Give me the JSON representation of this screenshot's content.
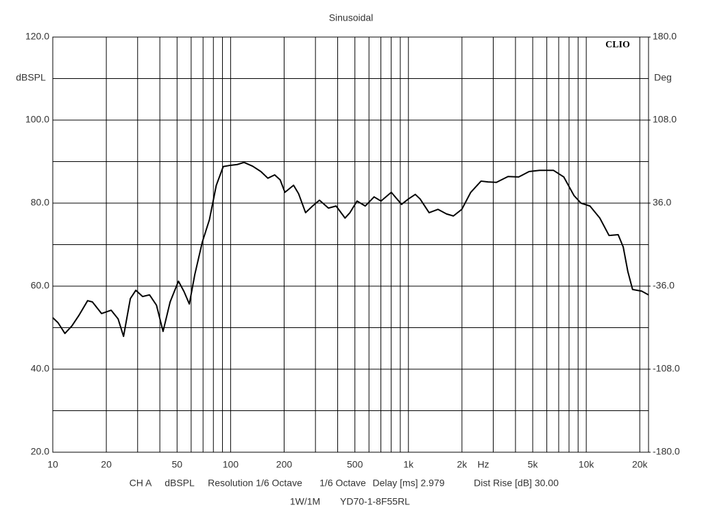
{
  "chart_data": {
    "type": "line",
    "title": "Sinusoidal",
    "logo": "CLIO",
    "y_label": "dBSPL",
    "y2_label": "Deg",
    "x_unit": "Hz",
    "info": [
      "CH A",
      "dBSPL",
      "Resolution 1/6 Octave",
      "1/6 Octave",
      "Delay [ms] 2.979",
      "Dist Rise [dB] 30.00"
    ],
    "info2": [
      "1W/1M",
      "YD70-1-8F55RL"
    ],
    "x_log": true,
    "xlim": [
      10,
      22400
    ],
    "xticks": [
      10,
      20,
      50,
      100,
      200,
      500,
      {
        "value": 1000,
        "label": "1k"
      },
      {
        "value": 2000,
        "label": "2k"
      },
      {
        "value": 5000,
        "label": "5k"
      },
      {
        "value": 10000,
        "label": "10k"
      },
      {
        "value": 20000,
        "label": "20k"
      }
    ],
    "xminor": [
      30,
      40,
      60,
      70,
      80,
      90,
      300,
      400,
      600,
      700,
      800,
      900,
      3000,
      4000,
      6000,
      7000,
      8000,
      9000
    ],
    "ylim": [
      20,
      120
    ],
    "yticks": [
      {
        "value": 120,
        "label": "120.0"
      },
      {
        "value": 100,
        "label": "100.0"
      },
      {
        "value": 80,
        "label": "80.0"
      },
      {
        "value": 60,
        "label": "60.0"
      },
      {
        "value": 40,
        "label": "40.0"
      },
      {
        "value": 20,
        "label": "20.0"
      }
    ],
    "yminor": [
      110,
      90,
      70,
      50,
      30
    ],
    "y2lim": [
      -180,
      180
    ],
    "y2ticks": [
      {
        "value": 180,
        "label": "180.0"
      },
      {
        "value": 108,
        "label": "108.0"
      },
      {
        "value": 36,
        "label": "36.0"
      },
      {
        "value": -36,
        "label": "-36.0"
      },
      {
        "value": -108,
        "label": "-108.0"
      },
      {
        "value": -180,
        "label": "-180.0"
      }
    ],
    "grid": true,
    "series": [
      {
        "name": "SPL",
        "color": "#000000",
        "x": [
          10,
          10.7,
          11.7,
          12.8,
          14,
          15.7,
          16.7,
          18.8,
          21.3,
          23.3,
          25,
          27.3,
          29.3,
          32,
          35,
          38.3,
          41.7,
          45.7,
          50.9,
          54.7,
          58.6,
          62.9,
          69.3,
          76,
          83.1,
          90.9,
          99.5,
          109,
          119,
          133,
          148,
          162,
          177,
          190,
          202,
          226,
          241,
          264,
          289,
          316,
          355,
          392,
          440,
          469,
          514,
          572,
          641,
          701,
          801,
          915,
          1000,
          1093,
          1163,
          1307,
          1467,
          1637,
          1790,
          1996,
          2241,
          2561,
          2800,
          3125,
          3632,
          4169,
          4770,
          5462,
          6536,
          7476,
          8538,
          9338,
          10494,
          11920,
          13435,
          15120,
          16150,
          17120,
          18220,
          20500,
          22400
        ],
        "values": [
          52.4,
          51.2,
          48.6,
          50.4,
          52.9,
          56.5,
          56.2,
          53.4,
          54.2,
          52.1,
          47.9,
          57,
          59,
          57.5,
          57.9,
          55.4,
          49.1,
          56.2,
          61.2,
          58.7,
          55.7,
          62.8,
          70.6,
          76,
          84.3,
          88.8,
          89.1,
          89.3,
          89.8,
          88.9,
          87.6,
          86,
          86.8,
          85.6,
          82.6,
          84.3,
          82.3,
          77.7,
          79.3,
          80.7,
          78.8,
          79.3,
          76.4,
          77.7,
          80.5,
          79.3,
          81.5,
          80.5,
          82.6,
          79.7,
          81,
          82.1,
          81,
          77.7,
          78.5,
          77.4,
          76.9,
          78.5,
          82.6,
          85.3,
          85.1,
          85,
          86.4,
          86.3,
          87.6,
          87.9,
          87.9,
          86.3,
          81.8,
          80,
          79.3,
          76.4,
          72.2,
          72.4,
          69.4,
          63.6,
          59.2,
          58.8,
          57.9
        ]
      }
    ]
  }
}
